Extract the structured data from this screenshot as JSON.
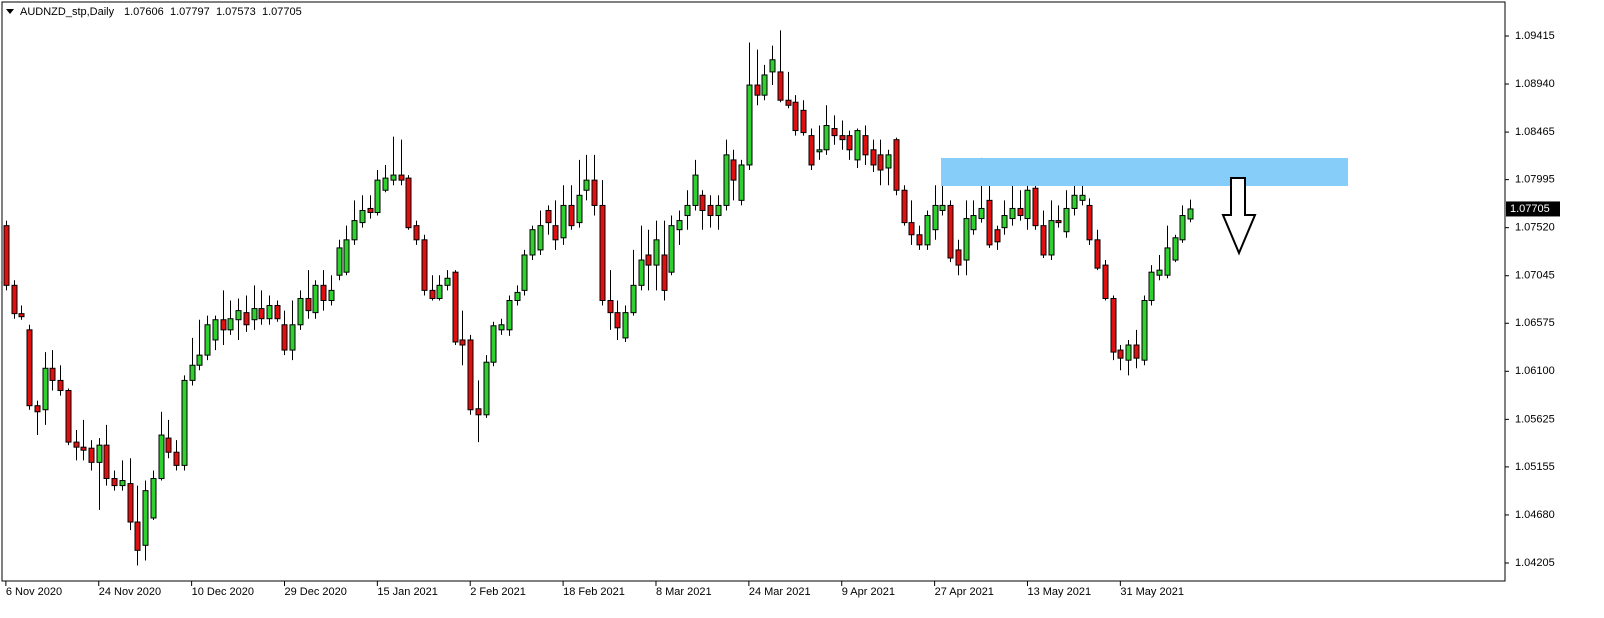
{
  "chart_data": {
    "type": "candlestick",
    "title": "AUDNZD_stp,Daily",
    "up_color": "#2fd02f",
    "down_color": "#e01010",
    "grid": false,
    "ylim": [
      1.04027,
      1.09751
    ],
    "yticks": [
      1.09415,
      {
        "value": 1.0894,
        "label": "1.08940"
      },
      1.08465,
      1.07995,
      {
        "value": 1.0752,
        "label": "1.07520"
      },
      1.07045,
      1.06575,
      {
        "value": 1.061,
        "label": "1.06100"
      },
      1.05625,
      1.05155,
      {
        "value": 1.0468,
        "label": "1.04680"
      },
      1.04205
    ],
    "xlim": [
      -0.5,
      193.7
    ],
    "xticks": [
      {
        "value": 0,
        "label": "6 Nov 2020"
      },
      {
        "value": 12,
        "label": "24 Nov 2020"
      },
      {
        "value": 24,
        "label": "10 Dec 2020"
      },
      {
        "value": 36,
        "label": "29 Dec 2020"
      },
      {
        "value": 48,
        "label": "15 Jan 2021"
      },
      {
        "value": 60,
        "label": "2 Feb 2021"
      },
      {
        "value": 72,
        "label": "18 Feb 2021"
      },
      {
        "value": 84,
        "label": "8 Mar 2021"
      },
      {
        "value": 96,
        "label": "24 Mar 2021"
      },
      {
        "value": 108,
        "label": "9 Apr 2021"
      },
      {
        "value": 120,
        "label": "27 Apr 2021"
      },
      {
        "value": 132,
        "label": "13 May 2021"
      },
      {
        "value": 144,
        "label": "31 May 2021"
      }
    ],
    "open": [
      1.0754,
      1.0695,
      1.0667,
      1.0651,
      1.0576,
      1.0572,
      1.0613,
      1.0601,
      1.0591,
      1.054,
      1.0535,
      1.0534,
      1.052,
      1.0537,
      1.0504,
      1.0497,
      1.0499,
      1.0461,
      1.0438,
      1.0465,
      1.0504,
      1.0544,
      1.053,
      1.0517,
      1.0601,
      1.0616,
      1.0626,
      1.0641,
      1.0661,
      1.0651,
      1.0661,
      1.0668,
      1.0661,
      1.0672,
      1.0662,
      1.0675,
      1.0656,
      1.0631,
      1.0656,
      1.0682,
      1.0668,
      1.0695,
      1.068,
      1.0705,
      1.0708,
      1.074,
      1.0757,
      1.0771,
      1.0767,
      1.0789,
      1.0799,
      1.0804,
      1.0801,
      1.0754,
      1.074,
      1.069,
      1.0682,
      1.0695,
      1.0708,
      1.0641,
      1.0641,
      1.0573,
      1.0567,
      1.0619,
      1.0651,
      1.0651,
      1.068,
      1.069,
      1.0725,
      1.073,
      1.0769,
      1.0754,
      1.0742,
      1.0774,
      1.0757,
      1.0789,
      1.0799,
      1.0774,
      1.068,
      1.0668,
      1.0643,
      1.0668,
      1.0695,
      1.0725,
      1.0715,
      1.0725,
      1.0708,
      1.075,
      1.0764,
      1.0774,
      1.0784,
      1.0774,
      1.0764,
      1.0774,
      1.0819,
      1.0779,
      1.0814,
      1.0893,
      1.0883,
      1.0906,
      1.0906,
      1.0878,
      1.0876,
      1.0868,
      1.0843,
      1.0827,
      1.0829,
      1.085,
      1.0843,
      1.0843,
      1.0819,
      1.0843,
      1.0829,
      1.0824,
      1.0811,
      1.0839,
      1.0789,
      1.0757,
      1.0745,
      1.0735,
      1.075,
      1.0769,
      1.0774,
      1.073,
      1.072,
      1.075,
      1.0761,
      1.0779,
      1.075,
      1.0752,
      1.0761,
      1.0771,
      1.0761,
      1.0791,
      1.0754,
      1.0725,
      1.0759,
      1.0748,
      1.0771,
      1.0779,
      1.0774,
      1.074,
      1.0715,
      1.0682,
      1.0631,
      1.0621,
      1.0636,
      1.0621,
      1.068,
      1.0705,
      1.0705,
      1.072,
      1.074,
      1.07606
    ],
    "high": [
      1.0759,
      1.07,
      1.0675,
      1.0656,
      1.0581,
      1.0629,
      1.0631,
      1.0616,
      1.0593,
      1.0552,
      1.0562,
      1.0542,
      1.0544,
      1.0557,
      1.0512,
      1.0522,
      1.0524,
      1.0497,
      1.0502,
      1.0512,
      1.057,
      1.0562,
      1.0542,
      1.0606,
      1.0643,
      1.0661,
      1.0665,
      1.0665,
      1.069,
      1.068,
      1.0682,
      1.0685,
      1.0695,
      1.069,
      1.0685,
      1.068,
      1.067,
      1.068,
      1.069,
      1.071,
      1.07,
      1.071,
      1.0705,
      1.074,
      1.0754,
      1.0779,
      1.0784,
      1.0784,
      1.0809,
      1.0814,
      1.0842,
      1.0839,
      1.0804,
      1.0759,
      1.0745,
      1.0705,
      1.0705,
      1.071,
      1.071,
      1.067,
      1.0646,
      1.0601,
      1.0626,
      1.0659,
      1.0662,
      1.0685,
      1.0695,
      1.073,
      1.0754,
      1.0769,
      1.0774,
      1.0779,
      1.0794,
      1.0794,
      1.0819,
      1.0824,
      1.0824,
      1.0799,
      1.071,
      1.068,
      1.0675,
      1.073,
      1.0754,
      1.075,
      1.0759,
      1.0759,
      1.0764,
      1.0769,
      1.0789,
      1.0819,
      1.0789,
      1.0784,
      1.0784,
      1.0839,
      1.0829,
      1.0819,
      1.0935,
      1.0928,
      1.0913,
      1.0932,
      1.0947,
      1.0906,
      1.0883,
      1.0878,
      1.085,
      1.0853,
      1.0873,
      1.0863,
      1.0858,
      1.0848,
      1.085,
      1.0853,
      1.0839,
      1.0839,
      1.0829,
      1.0841,
      1.0794,
      1.0779,
      1.0754,
      1.0769,
      1.0794,
      1.0794,
      1.0779,
      1.074,
      1.0779,
      1.0779,
      1.0821,
      1.0794,
      1.0754,
      1.0779,
      1.0814,
      1.0789,
      1.0804,
      1.0799,
      1.0769,
      1.0779,
      1.0774,
      1.0789,
      1.0794,
      1.0804,
      1.0781,
      1.075,
      1.072,
      1.0685,
      1.0636,
      1.0641,
      1.0651,
      1.0685,
      1.0715,
      1.0725,
      1.0754,
      1.0745,
      1.0774,
      1.07797
    ],
    "low": [
      1.069,
      1.0662,
      1.0661,
      1.0572,
      1.0547,
      1.0557,
      1.0591,
      1.0586,
      1.0537,
      1.0522,
      1.0522,
      1.0512,
      1.0473,
      1.0497,
      1.0492,
      1.0492,
      1.0453,
      1.0418,
      1.0423,
      1.0463,
      1.0502,
      1.0524,
      1.0512,
      1.0512,
      1.0596,
      1.0611,
      1.0621,
      1.0631,
      1.0636,
      1.0646,
      1.0641,
      1.0649,
      1.0651,
      1.0656,
      1.0656,
      1.0659,
      1.0626,
      1.0621,
      1.0651,
      1.0662,
      1.0662,
      1.067,
      1.0675,
      1.07,
      1.0705,
      1.0735,
      1.0752,
      1.0761,
      1.0764,
      1.0787,
      1.0794,
      1.0794,
      1.075,
      1.0735,
      1.0685,
      1.068,
      1.068,
      1.069,
      1.0636,
      1.0616,
      1.0567,
      1.054,
      1.0564,
      1.0615,
      1.0646,
      1.0645,
      1.0675,
      1.0685,
      1.072,
      1.0725,
      1.0745,
      1.073,
      1.0735,
      1.075,
      1.0752,
      1.0779,
      1.0764,
      1.0675,
      1.0651,
      1.0641,
      1.0639,
      1.0665,
      1.069,
      1.069,
      1.069,
      1.068,
      1.0705,
      1.0735,
      1.075,
      1.0769,
      1.075,
      1.0752,
      1.075,
      1.0769,
      1.0779,
      1.0774,
      1.0809,
      1.0873,
      1.0878,
      1.0893,
      1.0876,
      1.087,
      1.0843,
      1.0843,
      1.0809,
      1.0819,
      1.0824,
      1.0834,
      1.0829,
      1.0819,
      1.0811,
      1.0814,
      1.0807,
      1.0794,
      1.0794,
      1.0784,
      1.0754,
      1.0735,
      1.073,
      1.073,
      1.074,
      1.0764,
      1.0718,
      1.0705,
      1.0705,
      1.0745,
      1.0757,
      1.0732,
      1.073,
      1.0745,
      1.0754,
      1.0759,
      1.075,
      1.075,
      1.0722,
      1.072,
      1.0752,
      1.0742,
      1.0764,
      1.0774,
      1.0735,
      1.071,
      1.068,
      1.0621,
      1.0611,
      1.0606,
      1.0613,
      1.0616,
      1.0675,
      1.07,
      1.0702,
      1.0718,
      1.0737,
      1.07573
    ],
    "close": [
      1.0695,
      1.0667,
      1.0664,
      1.0576,
      1.057,
      1.0613,
      1.0601,
      1.0591,
      1.054,
      1.0535,
      1.0532,
      1.052,
      1.0537,
      1.0504,
      1.0497,
      1.0502,
      1.0461,
      1.0433,
      1.0492,
      1.0504,
      1.0547,
      1.053,
      1.0517,
      1.0601,
      1.0616,
      1.0626,
      1.0656,
      1.0661,
      1.0651,
      1.0662,
      1.067,
      1.0656,
      1.0672,
      1.0662,
      1.0675,
      1.0662,
      1.0631,
      1.0656,
      1.0682,
      1.067,
      1.0695,
      1.068,
      1.069,
      1.0732,
      1.074,
      1.0759,
      1.0769,
      1.0767,
      1.0799,
      1.0801,
      1.0804,
      1.0799,
      1.0752,
      1.074,
      1.069,
      1.0682,
      1.0695,
      1.0702,
      1.0639,
      1.0636,
      1.0572,
      1.0567,
      1.0619,
      1.0655,
      1.0656,
      1.068,
      1.0688,
      1.0725,
      1.075,
      1.0754,
      1.0757,
      1.074,
      1.0774,
      1.0754,
      1.0784,
      1.0799,
      1.0774,
      1.068,
      1.0668,
      1.0653,
      1.0668,
      1.0695,
      1.072,
      1.0715,
      1.074,
      1.069,
      1.0754,
      1.0759,
      1.0774,
      1.0804,
      1.0769,
      1.0764,
      1.0774,
      1.0824,
      1.0799,
      1.0814,
      1.0893,
      1.0883,
      1.0903,
      1.0918,
      1.0878,
      1.0873,
      1.0848,
      1.0846,
      1.0814,
      1.0829,
      1.0853,
      1.0843,
      1.0839,
      1.0829,
      1.0848,
      1.0824,
      1.0814,
      1.0809,
      1.0824,
      1.0789,
      1.0757,
      1.0745,
      1.0735,
      1.0764,
      1.0774,
      1.0774,
      1.0722,
      1.0715,
      1.0761,
      1.0764,
      1.0771,
      1.0735,
      1.0738,
      1.0764,
      1.0771,
      1.0764,
      1.0789,
      1.0754,
      1.0725,
      1.0759,
      1.0757,
      1.0771,
      1.0784,
      1.0784,
      1.074,
      1.0712,
      1.0682,
      1.0629,
      1.0623,
      1.0636,
      1.0623,
      1.068,
      1.0708,
      1.071,
      1.0732,
      1.0742,
      1.0764,
      1.07705
    ]
  }
}
